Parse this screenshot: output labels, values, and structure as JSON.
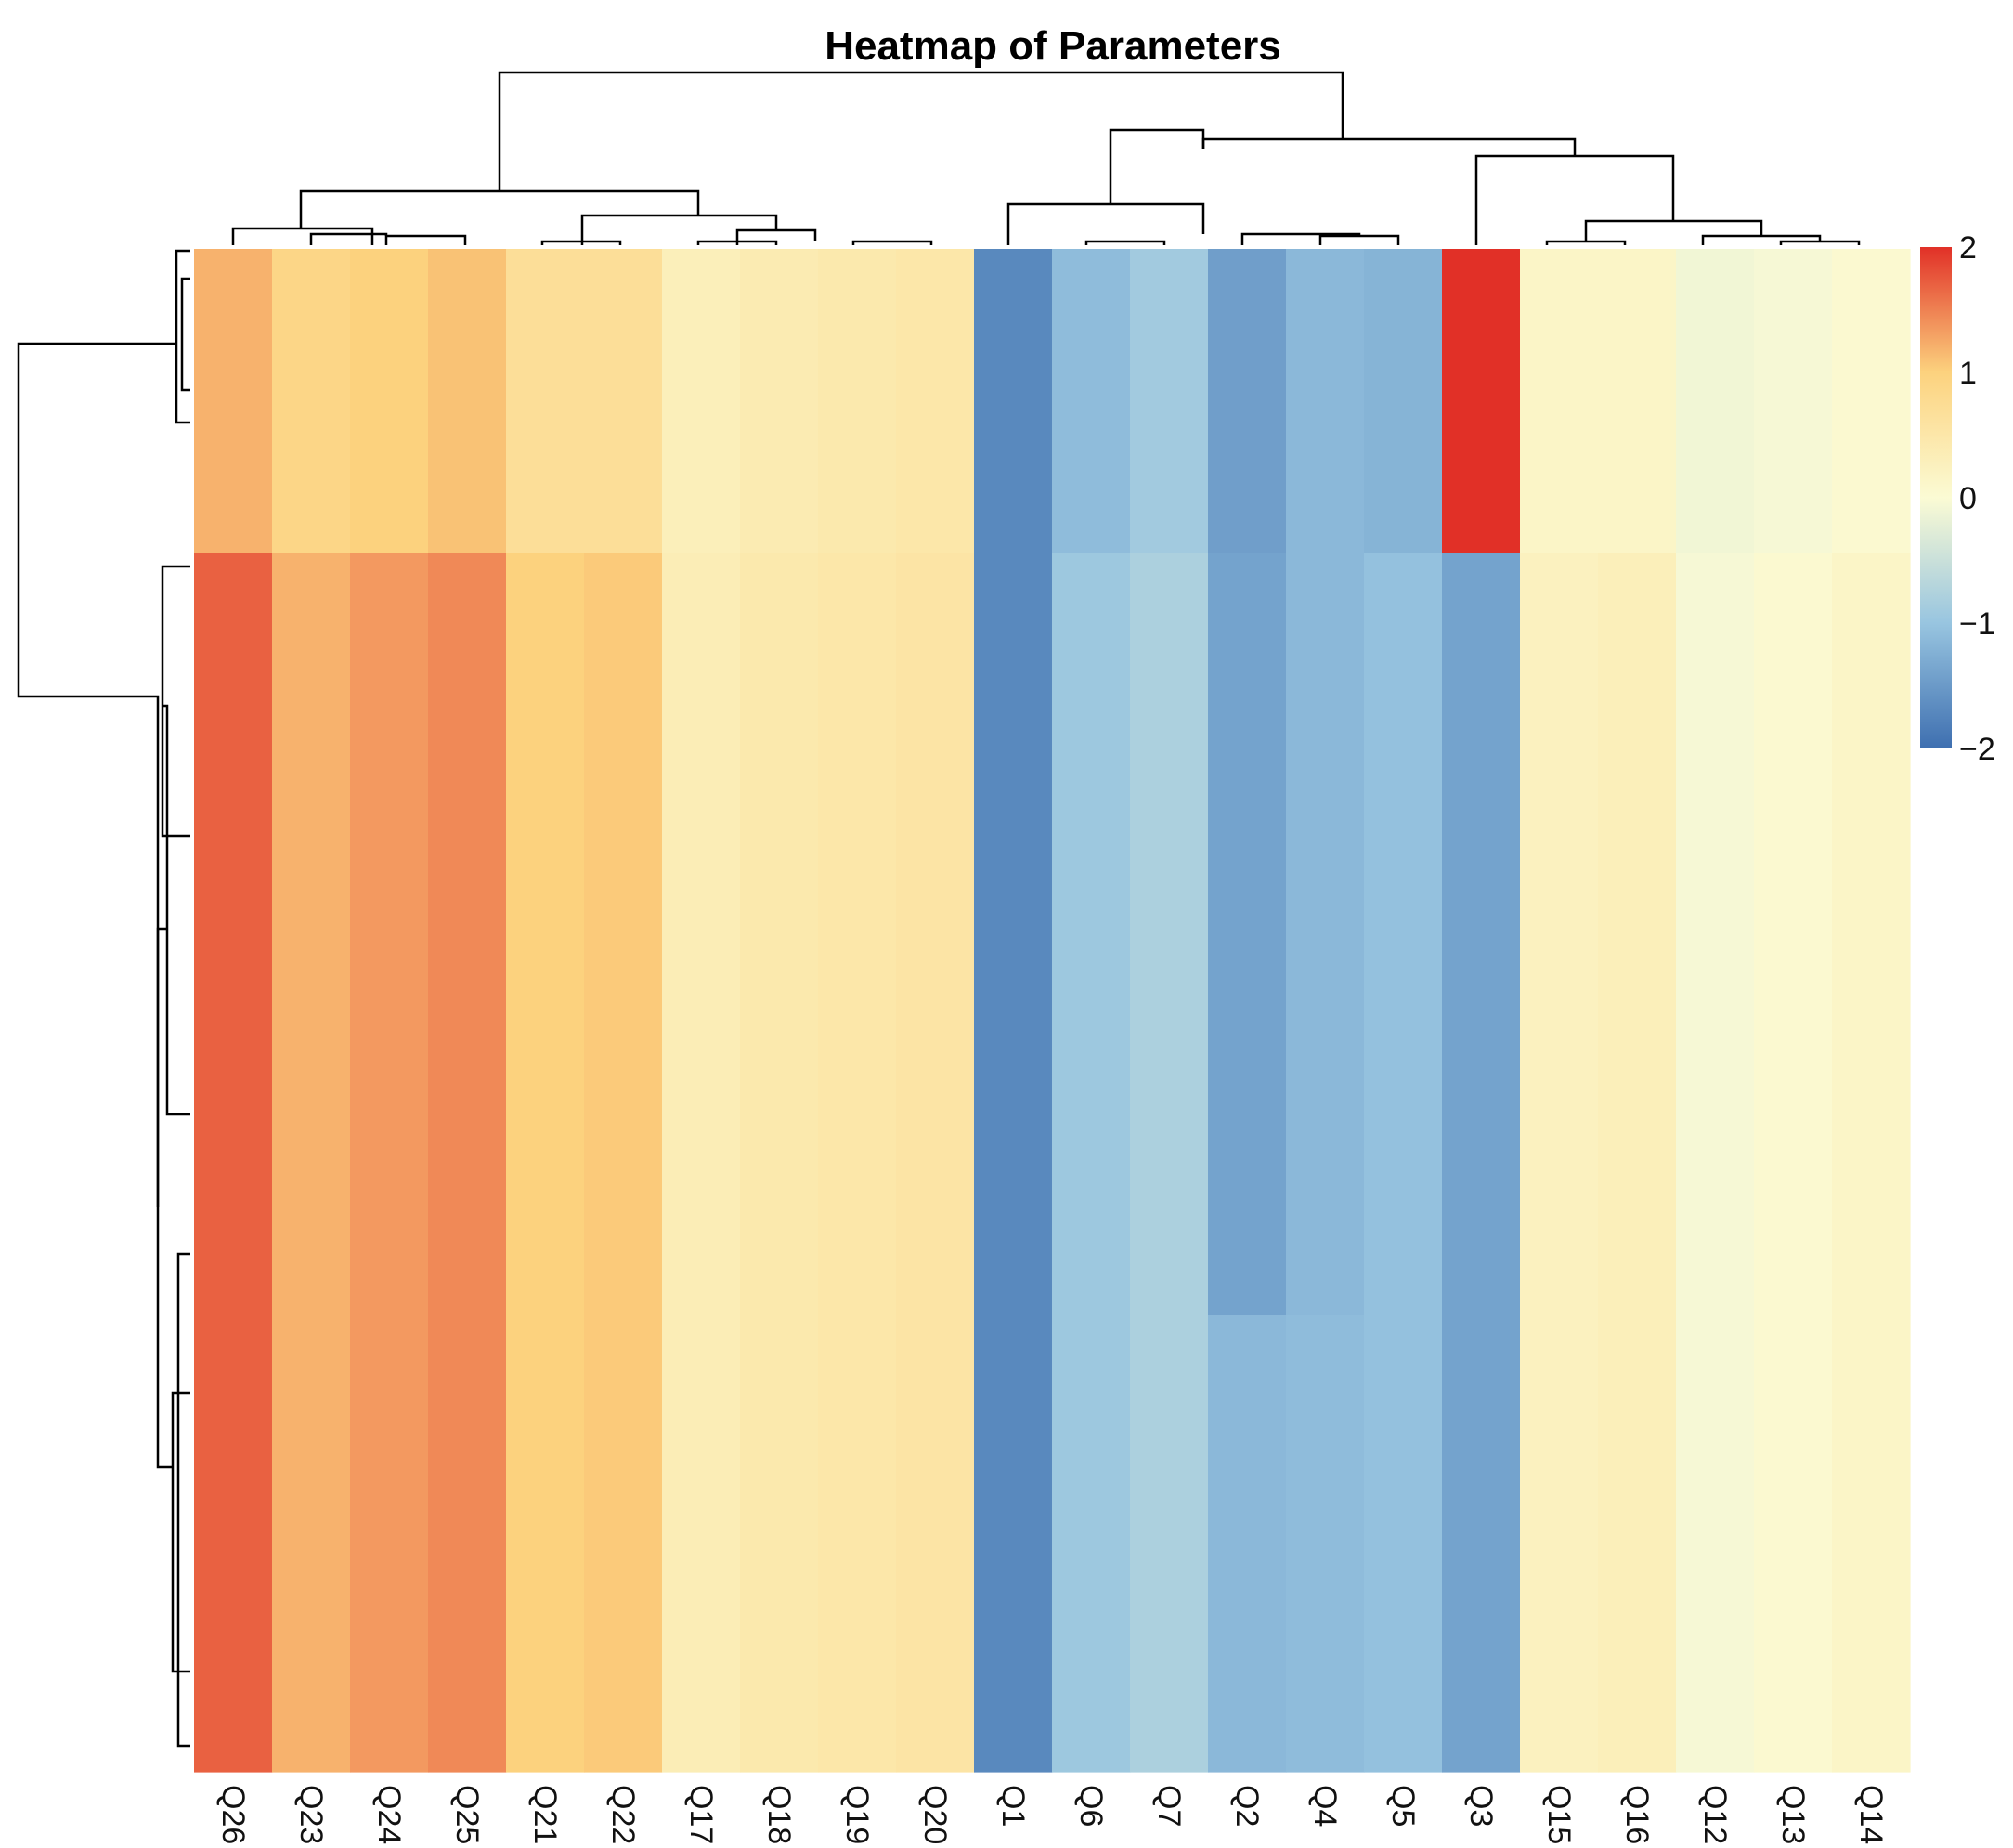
{
  "chart_data": {
    "type": "heatmap",
    "title": "Heatmap of Parameters",
    "columns": [
      "Q26",
      "Q23",
      "Q24",
      "Q25",
      "Q21",
      "Q22",
      "Q17",
      "Q18",
      "Q19",
      "Q20",
      "Q1",
      "Q6",
      "Q7",
      "Q2",
      "Q4",
      "Q5",
      "Q3",
      "Q15",
      "Q16",
      "Q12",
      "Q13",
      "Q14"
    ],
    "row_blocks": [
      {
        "name": "block-1",
        "rows": 80,
        "values": [
          1.2,
          0.9,
          1.0,
          1.1,
          0.7,
          0.7,
          0.3,
          0.4,
          0.45,
          0.5,
          -1.7,
          -1.1,
          -0.9,
          -1.45,
          -1.15,
          -1.2,
          2.0,
          0.15,
          0.15,
          -0.1,
          -0.05,
          0.05
        ]
      },
      {
        "name": "block-2",
        "rows": 200,
        "values": [
          1.7,
          1.2,
          1.35,
          1.45,
          1.0,
          1.05,
          0.35,
          0.45,
          0.5,
          0.55,
          -1.7,
          -0.95,
          -0.8,
          -1.4,
          -1.15,
          -1.05,
          -1.4,
          0.25,
          0.3,
          -0.05,
          0.05,
          0.15
        ]
      },
      {
        "name": "block-3",
        "rows": 120,
        "values": [
          1.7,
          1.2,
          1.35,
          1.45,
          1.0,
          1.05,
          0.35,
          0.45,
          0.5,
          0.55,
          -1.7,
          -0.95,
          -0.8,
          -1.15,
          -1.1,
          -1.05,
          -1.4,
          0.25,
          0.3,
          -0.05,
          0.05,
          0.15
        ]
      }
    ],
    "color_scale": {
      "min": -2,
      "max": 2,
      "ticks": [
        "2",
        "1",
        "0",
        "−1",
        "−2"
      ],
      "colors": [
        "#3e6fb0",
        "#98c5e0",
        "#fbfbd4",
        "#fcd27e",
        "#e13027"
      ]
    }
  }
}
